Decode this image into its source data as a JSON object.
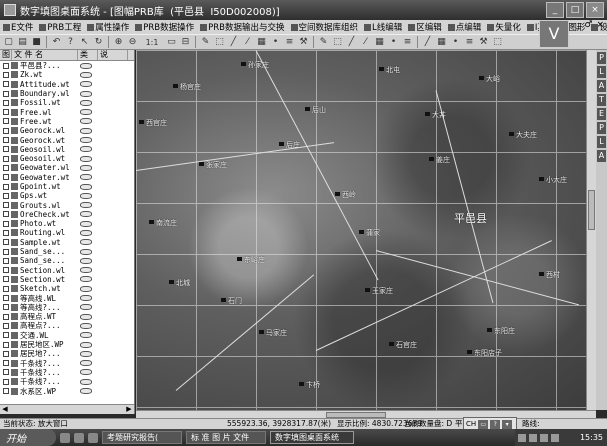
{
  "window": {
    "title": "数字填图桌面系统 - [图幅PRB库  (平邑县  I50D002008)]",
    "buttons": [
      "_",
      "□",
      "×"
    ]
  },
  "menu": {
    "items": [
      "E文件",
      "PRB工程",
      "属性操作",
      "PRB数据操作",
      "PRB数据输出与交换",
      "空间数据库组织",
      "L线编辑",
      "区编辑",
      "点编辑",
      "矢量化",
      "I其它",
      "图形",
      "设置",
      "窗口",
      "帮助与字典"
    ],
    "mdi_controls": [
      "_",
      "♂",
      "×"
    ]
  },
  "toolbar": {
    "zoom_value": "1:1",
    "icons": [
      "new-icon",
      "open-icon",
      "save-icon",
      "undo-icon",
      "help-icon",
      "pointer-icon",
      "refresh-icon",
      "zoom-in-icon",
      "zoom-out-icon",
      "zoom-value",
      "frame-icon",
      "layout-icon",
      "edit-icon",
      "select-icon",
      "draw-icon",
      "line-icon",
      "area-icon",
      "point-icon",
      "layer-icon",
      "tool-icon"
    ]
  },
  "layers": {
    "header": {
      "col1": "图",
      "col2": "文 件 名",
      "col3": "类",
      "col4": "说"
    },
    "items": [
      {
        "name": "平邑县?..."
      },
      {
        "name": "Zk.wt"
      },
      {
        "name": "Attitude.wt"
      },
      {
        "name": "Boundary.wl"
      },
      {
        "name": "Fossil.wt"
      },
      {
        "name": "Free.wl"
      },
      {
        "name": "Free.wt"
      },
      {
        "name": "Georock.wl"
      },
      {
        "name": "Georock.wt"
      },
      {
        "name": "Geosoil.wl"
      },
      {
        "name": "Geosoil.wt"
      },
      {
        "name": "Geowater.wl"
      },
      {
        "name": "Geowater.wt"
      },
      {
        "name": "Gpoint.wt"
      },
      {
        "name": "Gps.wt"
      },
      {
        "name": "Grouts.wl"
      },
      {
        "name": "OreCheck.wt"
      },
      {
        "name": "Photo.wt"
      },
      {
        "name": "Routing.wl"
      },
      {
        "name": "Sample.wt"
      },
      {
        "name": "Sand_se..."
      },
      {
        "name": "Sand_se..."
      },
      {
        "name": "Section.wl"
      },
      {
        "name": "Section.wt"
      },
      {
        "name": "Sketch.wt"
      },
      {
        "name": "等高线.WL"
      },
      {
        "name": "等高线?..."
      },
      {
        "name": "高程点.WT"
      },
      {
        "name": "高程点?..."
      },
      {
        "name": "交通.WL"
      },
      {
        "name": "居民地区.WP"
      },
      {
        "name": "居民地?..."
      },
      {
        "name": "千条线?..."
      },
      {
        "name": "千条线?..."
      },
      {
        "name": "千条线?..."
      },
      {
        "name": "水系区.WP"
      }
    ]
  },
  "map": {
    "county_label": "平邑县",
    "places": [
      {
        "name": "孙家庄"
      },
      {
        "name": "杨官庄"
      },
      {
        "name": "西官庄"
      },
      {
        "name": "后山"
      },
      {
        "name": "大峪"
      },
      {
        "name": "南流庄"
      },
      {
        "name": "东峪庄"
      },
      {
        "name": "石门"
      },
      {
        "name": "王家庄"
      },
      {
        "name": "北城"
      },
      {
        "name": "后庄"
      },
      {
        "name": "姜庄"
      },
      {
        "name": "西岭"
      },
      {
        "name": "大夫庄"
      },
      {
        "name": "东阳庄"
      },
      {
        "name": "蒲家"
      },
      {
        "name": "马家庄"
      },
      {
        "name": "石官庄"
      },
      {
        "name": "卞桥"
      },
      {
        "name": "东阳店子"
      },
      {
        "name": "小大庄"
      },
      {
        "name": "大井"
      },
      {
        "name": "北屯"
      },
      {
        "name": "张家庄"
      },
      {
        "name": "西村"
      }
    ]
  },
  "status": {
    "state": "当前状态: 放大窗口",
    "coords": "555923.36, 3928317.87(米)",
    "scale": "显示比例: 4830.723639",
    "count": "当前数量盘: D",
    "extra": "平",
    "route": "路线:"
  },
  "ime": {
    "lang": "CH"
  },
  "taskbar": {
    "start": "开始",
    "tasks": [
      "考题研究报告(",
      "标 准 图 片 文件",
      "数字填图桌面系统"
    ],
    "clock": "15:35"
  },
  "side_button": {
    "label": "V"
  }
}
